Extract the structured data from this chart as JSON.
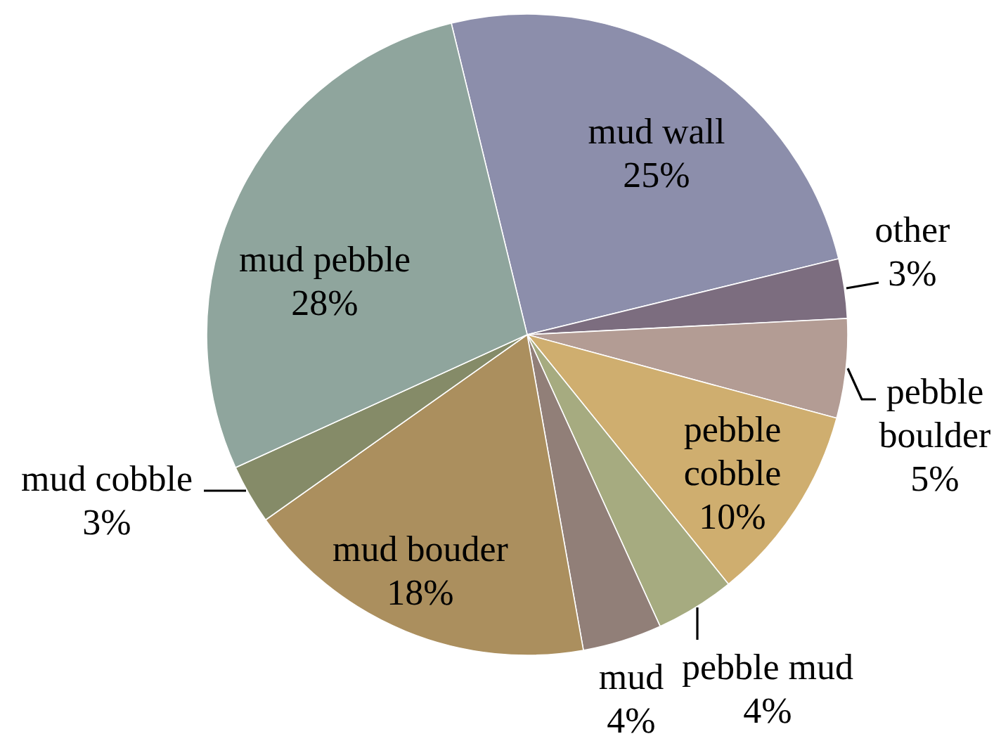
{
  "chart_data": {
    "type": "pie",
    "categories": [
      "mud wall",
      "other",
      "pebble boulder",
      "pebble cobble",
      "pebble mud",
      "mud",
      "mud bouder",
      "mud cobble",
      "mud pebble"
    ],
    "values": [
      25,
      3,
      5,
      10,
      4,
      4,
      18,
      3,
      28
    ],
    "value_labels": [
      "25%",
      "3%",
      "5%",
      "10%",
      "4%",
      "4%",
      "18%",
      "3%",
      "28%"
    ],
    "colors": [
      "#8c8eab",
      "#7c6d7f",
      "#b39c94",
      "#cfae6f",
      "#a6ab80",
      "#917f78",
      "#ab8f5e",
      "#858b68",
      "#8fa59d"
    ]
  }
}
